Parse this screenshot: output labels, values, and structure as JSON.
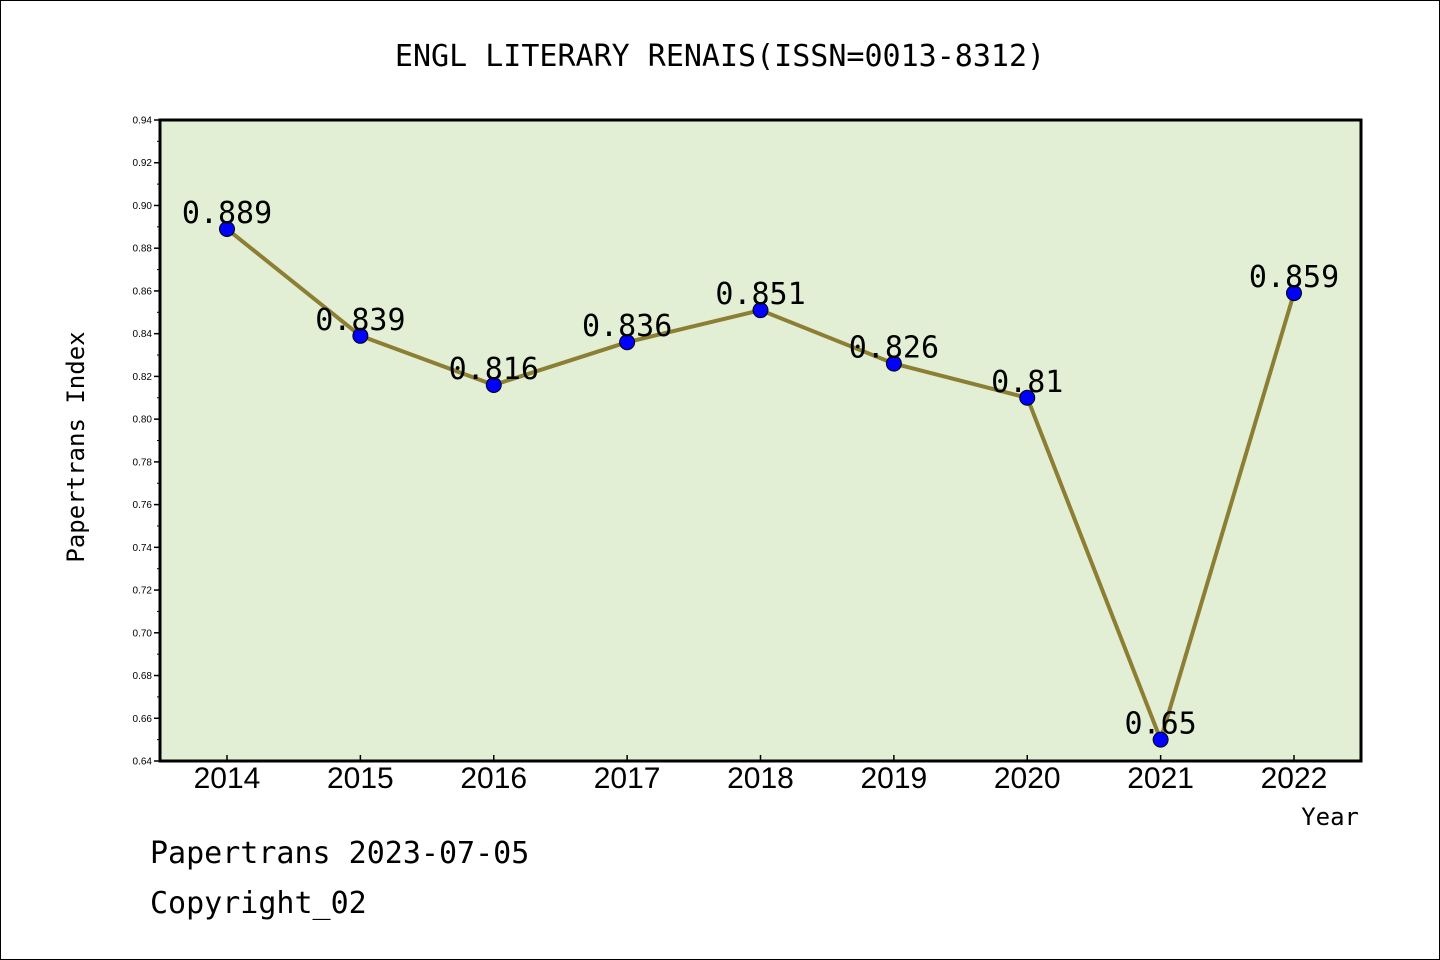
{
  "chart_data": {
    "type": "line",
    "title": "ENGL LITERARY RENAIS(ISSN=0013-8312)",
    "xlabel": "Year",
    "ylabel": "Papertrans Index",
    "categories": [
      "2014",
      "2015",
      "2016",
      "2017",
      "2018",
      "2019",
      "2020",
      "2021",
      "2022"
    ],
    "series": [
      {
        "values": [
          0.889,
          0.839,
          0.816,
          0.836,
          0.851,
          0.826,
          0.81,
          0.65,
          0.859
        ],
        "labels": [
          "0.889",
          "0.839",
          "0.816",
          "0.836",
          "0.851",
          "0.826",
          "0.81",
          "0.65",
          "0.859"
        ]
      }
    ],
    "ylim": [
      0.64,
      0.94
    ],
    "yticks": [
      "0.64",
      "0.66",
      "0.68",
      "0.70",
      "0.72",
      "0.74",
      "0.76",
      "0.78",
      "0.80",
      "0.82",
      "0.84",
      "0.86",
      "0.88",
      "0.90",
      "0.92",
      "0.94"
    ],
    "grid": false,
    "legend": "none",
    "colors": {
      "plot_background": "#e2efd5",
      "line": "#8c7f33",
      "marker": "#0000ff"
    }
  },
  "footer": {
    "line1": "Papertrans 2023-07-05",
    "line2": "Copyright_02"
  }
}
